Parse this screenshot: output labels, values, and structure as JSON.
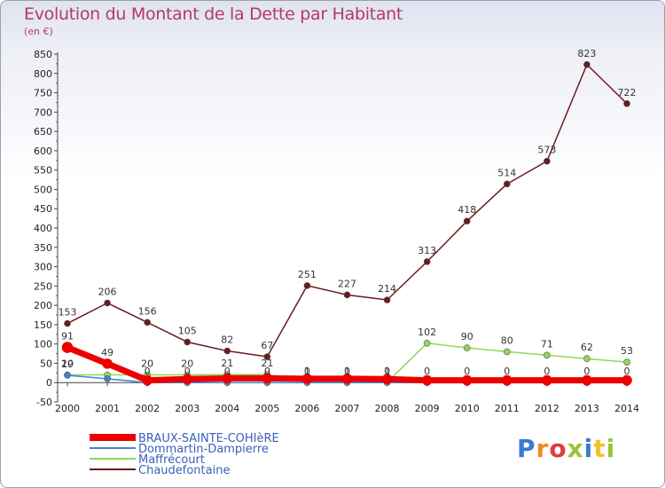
{
  "header": {
    "title": "Evolution du Montant de la Dette par Habitant",
    "unit": "(en €)"
  },
  "logo": {
    "text": "Proxiti",
    "colors": [
      "#3a7bd5",
      "#f08a24",
      "#e23c3c",
      "#9bc43b",
      "#3a7bd5",
      "#f0c324",
      "#9bc43b"
    ]
  },
  "chart_data": {
    "type": "line",
    "x": [
      "2000",
      "2001",
      "2002",
      "2003",
      "2004",
      "2005",
      "2006",
      "2007",
      "2008",
      "2009",
      "2010",
      "2011",
      "2012",
      "2013",
      "2014"
    ],
    "ylim": [
      -50,
      850
    ],
    "yticks": [
      -50,
      0,
      50,
      100,
      150,
      200,
      250,
      300,
      350,
      400,
      450,
      500,
      550,
      600,
      650,
      700,
      750,
      800,
      850
    ],
    "grid": false,
    "legend_position": "bottom-left",
    "series": [
      {
        "name": "BRAUX-SAINTE-COHIèRE",
        "color": "#ee0000",
        "values": [
          91,
          49,
          6,
          9,
          11,
          11,
          10,
          10,
          9,
          6,
          6,
          6,
          6,
          6,
          6
        ],
        "labels": [
          "91",
          "49",
          "",
          "",
          "",
          "",
          "",
          "",
          "",
          "",
          "",
          "",
          "",
          "",
          ""
        ]
      },
      {
        "name": "Dommartin-Dampierre",
        "color": "#3c86d0",
        "values": [
          19,
          10,
          0,
          0,
          0,
          0,
          0,
          0,
          0,
          0,
          0,
          0,
          0,
          0,
          0
        ],
        "labels": [
          "19",
          "",
          "0",
          "0",
          "0",
          "0",
          "0",
          "0",
          "0",
          "0",
          "0",
          "0",
          "0",
          "0",
          "0"
        ]
      },
      {
        "name": "Maffrécourt",
        "color": "#8fd85a",
        "values": [
          20,
          20,
          20,
          20,
          21,
          21,
          1,
          1,
          1,
          102,
          90,
          80,
          71,
          62,
          53
        ],
        "labels": [
          "20",
          "",
          "20",
          "20",
          "21",
          "21",
          "1",
          "1",
          "1",
          "102",
          "90",
          "80",
          "71",
          "62",
          "53"
        ]
      },
      {
        "name": "Chaudefontaine",
        "color": "#6b1a1f",
        "values": [
          153,
          206,
          156,
          105,
          82,
          67,
          251,
          227,
          214,
          313,
          418,
          514,
          573,
          823,
          722
        ],
        "labels": [
          "153",
          "206",
          "156",
          "105",
          "82",
          "67",
          "251",
          "227",
          "214",
          "313",
          "418",
          "514",
          "573",
          "823",
          "722"
        ]
      }
    ]
  }
}
